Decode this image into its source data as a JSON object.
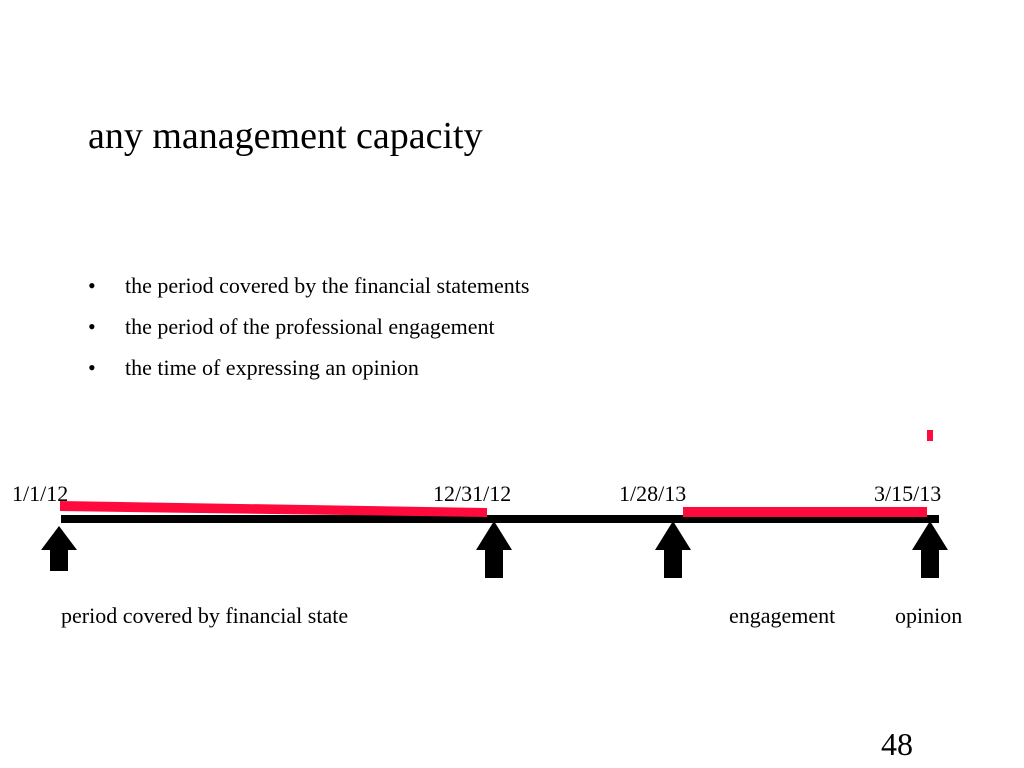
{
  "slide": {
    "title": "any management capacity",
    "bullets": [
      {
        "marker": "•",
        "text": "the period covered by the financial statements"
      },
      {
        "marker": "•",
        "text": "the period of the professional engagement"
      },
      {
        "marker": "•",
        "text": "the time of expressing an opinion"
      }
    ],
    "page_number": "48"
  },
  "timeline": {
    "dates": [
      "1/1/12",
      "12/31/12",
      "1/28/13",
      "3/15/13"
    ],
    "captions": {
      "period": "period covered by financial state",
      "engagement": "engagement",
      "opinion": "opinion"
    },
    "colors": {
      "axis": "#000000",
      "highlight": "#ff0a3c",
      "arrow": "#000000"
    }
  }
}
